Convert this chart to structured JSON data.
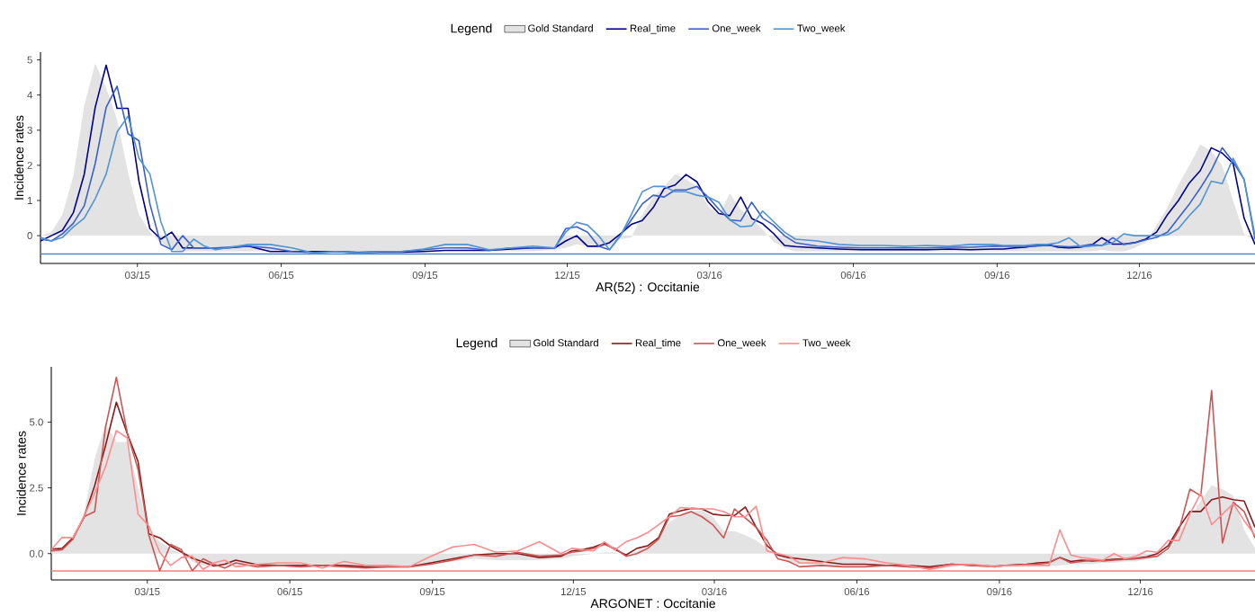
{
  "chart_data": [
    {
      "type": "line",
      "xlabel": "AR(52) : Occitanie",
      "ylabel": "Incidence rates",
      "legend_title": "Legend",
      "legend": "top",
      "x": [
        "2014-12-29",
        "2015-01-05",
        "2015-01-12",
        "2015-01-19",
        "2015-01-26",
        "2015-02-02",
        "2015-02-09",
        "2015-02-16",
        "2015-02-23",
        "2015-03-02",
        "2015-03-09",
        "2015-03-16",
        "2015-03-23",
        "2015-03-30",
        "2015-04-06",
        "2015-04-13",
        "2015-04-20",
        "2015-04-27",
        "2015-05-11",
        "2015-05-25",
        "2015-06-08",
        "2015-06-22",
        "2015-07-06",
        "2015-07-20",
        "2015-08-03",
        "2015-08-17",
        "2015-08-31",
        "2015-09-14",
        "2015-09-28",
        "2015-10-12",
        "2015-10-26",
        "2015-11-09",
        "2015-11-23",
        "2015-11-30",
        "2015-12-07",
        "2015-12-14",
        "2015-12-21",
        "2015-12-28",
        "2016-01-04",
        "2016-01-11",
        "2016-01-18",
        "2016-01-25",
        "2016-02-01",
        "2016-02-08",
        "2016-02-15",
        "2016-02-22",
        "2016-02-29",
        "2016-03-07",
        "2016-03-14",
        "2016-03-21",
        "2016-03-28",
        "2016-04-04",
        "2016-04-11",
        "2016-04-18",
        "2016-04-25",
        "2016-05-09",
        "2016-05-23",
        "2016-06-06",
        "2016-06-20",
        "2016-07-04",
        "2016-07-18",
        "2016-08-01",
        "2016-08-15",
        "2016-08-29",
        "2016-09-05",
        "2016-09-12",
        "2016-09-19",
        "2016-09-26",
        "2016-10-03",
        "2016-10-10",
        "2016-10-17",
        "2016-10-24",
        "2016-10-31",
        "2016-11-07",
        "2016-11-14",
        "2016-11-21",
        "2016-11-28",
        "2016-12-05",
        "2016-12-12",
        "2016-12-19",
        "2016-12-26",
        "2017-01-02",
        "2017-01-09",
        "2017-01-16",
        "2017-01-23",
        "2017-01-30",
        "2017-02-06",
        "2017-02-13"
      ],
      "series": [
        {
          "name": "Gold Standard",
          "type": "area",
          "color": "#e3e3e3",
          "values": [
            0.0,
            0.1,
            0.6,
            1.7,
            3.7,
            4.9,
            4.2,
            3.3,
            1.8,
            0.6,
            0.1,
            -0.2,
            -0.4,
            -0.45,
            -0.45,
            -0.45,
            -0.45,
            -0.45,
            -0.45,
            -0.45,
            -0.45,
            -0.45,
            -0.45,
            -0.45,
            -0.45,
            -0.45,
            -0.45,
            -0.35,
            -0.4,
            -0.45,
            -0.45,
            -0.45,
            -0.4,
            -0.35,
            -0.25,
            -0.3,
            -0.3,
            -0.3,
            -0.1,
            -0.05,
            0.6,
            1.1,
            1.4,
            1.75,
            1.6,
            1.4,
            0.85,
            0.6,
            1.2,
            0.75,
            0.5,
            0.17,
            -0.17,
            -0.35,
            -0.45,
            -0.45,
            -0.45,
            -0.45,
            -0.45,
            -0.45,
            -0.45,
            -0.45,
            -0.45,
            -0.45,
            -0.45,
            -0.45,
            -0.45,
            -0.45,
            -0.45,
            -0.45,
            -0.45,
            -0.45,
            -0.45,
            -0.4,
            -0.45,
            -0.45,
            -0.35,
            -0.2,
            0.3,
            0.8,
            1.45,
            2.0,
            2.6,
            2.4,
            2.0,
            1.0,
            0.05,
            -0.15
          ]
        },
        {
          "name": "Real_time",
          "color": "#00008b",
          "values": [
            -0.15,
            0.0,
            0.15,
            0.65,
            1.75,
            3.65,
            4.85,
            3.62,
            3.62,
            1.55,
            0.2,
            -0.1,
            0.1,
            -0.35,
            -0.35,
            -0.35,
            -0.35,
            -0.35,
            -0.3,
            -0.45,
            -0.45,
            -0.45,
            -0.45,
            -0.48,
            -0.47,
            -0.47,
            -0.45,
            -0.42,
            -0.42,
            -0.42,
            -0.38,
            -0.35,
            -0.35,
            -0.15,
            0.0,
            -0.3,
            -0.3,
            -0.2,
            0.05,
            0.32,
            0.43,
            0.8,
            1.34,
            1.44,
            1.74,
            1.53,
            0.97,
            0.63,
            0.57,
            1.1,
            0.49,
            0.34,
            0.06,
            -0.28,
            -0.31,
            -0.35,
            -0.38,
            -0.4,
            -0.4,
            -0.4,
            -0.4,
            -0.38,
            -0.4,
            -0.38,
            -0.38,
            -0.35,
            -0.33,
            -0.28,
            -0.25,
            -0.33,
            -0.35,
            -0.33,
            -0.28,
            -0.06,
            -0.24,
            -0.24,
            -0.2,
            -0.1,
            0.1,
            0.6,
            1.0,
            1.5,
            1.85,
            2.5,
            2.35,
            2.05,
            0.5,
            -0.25
          ]
        },
        {
          "name": "One_week",
          "color": "#3a5fcd",
          "values": [
            -0.1,
            -0.15,
            0.05,
            0.35,
            0.85,
            2.05,
            3.65,
            4.25,
            2.9,
            2.7,
            0.9,
            -0.25,
            -0.4,
            0.0,
            -0.35,
            -0.35,
            -0.35,
            -0.33,
            -0.3,
            -0.35,
            -0.45,
            -0.48,
            -0.45,
            -0.47,
            -0.45,
            -0.45,
            -0.4,
            -0.35,
            -0.35,
            -0.42,
            -0.35,
            -0.35,
            -0.35,
            0.2,
            0.25,
            0.1,
            -0.3,
            -0.4,
            0.0,
            0.45,
            0.9,
            1.15,
            1.1,
            1.3,
            1.3,
            1.4,
            1.1,
            0.75,
            0.45,
            0.42,
            0.95,
            0.5,
            0.3,
            0.0,
            -0.2,
            -0.3,
            -0.33,
            -0.35,
            -0.35,
            -0.35,
            -0.35,
            -0.33,
            -0.33,
            -0.3,
            -0.3,
            -0.3,
            -0.3,
            -0.3,
            -0.28,
            -0.3,
            -0.32,
            -0.3,
            -0.25,
            -0.28,
            -0.06,
            -0.25,
            -0.2,
            -0.12,
            -0.05,
            0.1,
            0.5,
            0.9,
            1.35,
            1.85,
            2.5,
            2.1,
            1.6,
            -0.1
          ]
        },
        {
          "name": "Two_week",
          "color": "#4f94d4",
          "values": [
            -0.05,
            -0.15,
            -0.05,
            0.25,
            0.5,
            1.05,
            1.75,
            2.95,
            3.4,
            2.2,
            1.75,
            0.4,
            -0.45,
            -0.45,
            -0.1,
            -0.3,
            -0.4,
            -0.35,
            -0.25,
            -0.25,
            -0.35,
            -0.5,
            -0.45,
            -0.5,
            -0.45,
            -0.45,
            -0.38,
            -0.25,
            -0.25,
            -0.4,
            -0.35,
            -0.3,
            -0.35,
            0.1,
            0.38,
            0.3,
            0.0,
            -0.4,
            0.0,
            0.6,
            1.25,
            1.4,
            1.4,
            1.25,
            1.25,
            1.15,
            1.1,
            0.95,
            0.45,
            0.25,
            0.28,
            0.7,
            0.4,
            0.1,
            -0.1,
            -0.15,
            -0.25,
            -0.28,
            -0.28,
            -0.3,
            -0.28,
            -0.3,
            -0.25,
            -0.25,
            -0.28,
            -0.28,
            -0.28,
            -0.25,
            -0.25,
            -0.2,
            -0.06,
            -0.3,
            -0.3,
            -0.28,
            -0.2,
            0.05,
            0.0,
            0.0,
            0.0,
            0.02,
            0.2,
            0.57,
            0.9,
            1.55,
            1.48,
            2.2,
            1.6,
            0.0
          ]
        }
      ],
      "xlim": [
        "2014-12-29",
        "2017-02-13"
      ],
      "ylim": [
        -0.79,
        5.22
      ],
      "xticks": [
        {
          "value": "2015-03-01",
          "label": "03/15"
        },
        {
          "value": "2015-06-01",
          "label": "06/15"
        },
        {
          "value": "2015-09-01",
          "label": "09/15"
        },
        {
          "value": "2015-12-01",
          "label": "12/15"
        },
        {
          "value": "2016-03-01",
          "label": "03/16"
        },
        {
          "value": "2016-06-01",
          "label": "06/16"
        },
        {
          "value": "2016-09-01",
          "label": "09/16"
        },
        {
          "value": "2016-12-01",
          "label": "12/16"
        }
      ],
      "yticks": [
        0,
        1,
        2,
        3,
        4,
        5
      ],
      "ref_lines": [
        {
          "axis": "y",
          "value": -0.52,
          "color": "#4a86c8"
        }
      ]
    },
    {
      "type": "line",
      "xlabel": "ARGONET : Occitanie",
      "ylabel": "Incidence rates",
      "legend_title": "Legend",
      "legend": "top",
      "x": [
        "2014-12-29",
        "2015-01-05",
        "2015-01-12",
        "2015-01-19",
        "2015-01-26",
        "2015-02-02",
        "2015-02-09",
        "2015-02-16",
        "2015-02-23",
        "2015-03-02",
        "2015-03-09",
        "2015-03-16",
        "2015-03-23",
        "2015-03-30",
        "2015-04-06",
        "2015-04-13",
        "2015-04-20",
        "2015-04-27",
        "2015-05-11",
        "2015-05-25",
        "2015-06-08",
        "2015-06-22",
        "2015-07-06",
        "2015-07-20",
        "2015-08-03",
        "2015-08-17",
        "2015-08-31",
        "2015-09-14",
        "2015-09-28",
        "2015-10-12",
        "2015-10-26",
        "2015-11-09",
        "2015-11-23",
        "2015-11-30",
        "2015-12-07",
        "2015-12-14",
        "2015-12-21",
        "2015-12-28",
        "2016-01-04",
        "2016-01-11",
        "2016-01-18",
        "2016-01-25",
        "2016-02-01",
        "2016-02-08",
        "2016-02-15",
        "2016-02-22",
        "2016-02-29",
        "2016-03-07",
        "2016-03-14",
        "2016-03-21",
        "2016-03-28",
        "2016-04-04",
        "2016-04-11",
        "2016-04-18",
        "2016-04-25",
        "2016-05-09",
        "2016-05-23",
        "2016-06-06",
        "2016-06-20",
        "2016-07-04",
        "2016-07-18",
        "2016-08-01",
        "2016-08-15",
        "2016-08-29",
        "2016-09-05",
        "2016-09-12",
        "2016-09-19",
        "2016-09-26",
        "2016-10-03",
        "2016-10-10",
        "2016-10-17",
        "2016-10-24",
        "2016-10-31",
        "2016-11-07",
        "2016-11-14",
        "2016-11-21",
        "2016-11-28",
        "2016-12-05",
        "2016-12-12",
        "2016-12-19",
        "2016-12-26",
        "2017-01-02",
        "2017-01-09",
        "2017-01-16",
        "2017-01-23",
        "2017-01-30",
        "2017-02-06",
        "2017-02-13"
      ],
      "series": [
        {
          "name": "Gold Standard",
          "type": "area",
          "color": "#e3e3e3",
          "values": [
            0.1,
            0.15,
            0.5,
            1.5,
            3.6,
            4.95,
            4.25,
            4.25,
            2.5,
            0.9,
            0.45,
            0.2,
            0.0,
            -0.3,
            -0.45,
            -0.45,
            -0.45,
            -0.45,
            -0.45,
            -0.45,
            -0.45,
            -0.45,
            -0.45,
            -0.45,
            -0.45,
            -0.45,
            -0.4,
            -0.3,
            -0.2,
            -0.25,
            -0.25,
            -0.25,
            -0.2,
            -0.1,
            -0.05,
            0.0,
            0.05,
            0.05,
            -0.1,
            0.1,
            0.3,
            0.65,
            1.2,
            1.45,
            1.6,
            1.65,
            1.4,
            0.85,
            0.85,
            0.7,
            0.5,
            0.2,
            -0.1,
            -0.3,
            -0.4,
            -0.45,
            -0.45,
            -0.45,
            -0.45,
            -0.45,
            -0.45,
            -0.45,
            -0.45,
            -0.45,
            -0.45,
            -0.45,
            -0.45,
            -0.45,
            -0.45,
            -0.45,
            -0.4,
            -0.4,
            -0.4,
            -0.35,
            -0.35,
            -0.3,
            -0.3,
            -0.2,
            -0.1,
            0.1,
            0.8,
            1.4,
            2.0,
            2.6,
            2.45,
            2.2,
            0.9,
            0.2
          ]
        },
        {
          "name": "Real_time",
          "color": "#8b1a1a",
          "values": [
            0.17,
            0.2,
            0.6,
            1.36,
            2.58,
            4.1,
            5.76,
            4.57,
            3.5,
            0.75,
            0.6,
            0.29,
            0.06,
            -0.17,
            -0.32,
            -0.47,
            -0.4,
            -0.25,
            -0.42,
            -0.45,
            -0.45,
            -0.45,
            -0.45,
            -0.5,
            -0.5,
            -0.5,
            -0.35,
            -0.2,
            -0.05,
            0.0,
            0.0,
            -0.15,
            -0.1,
            0.1,
            0.15,
            0.25,
            0.4,
            0.15,
            -0.05,
            0.2,
            0.3,
            0.6,
            1.5,
            1.62,
            1.72,
            1.7,
            1.5,
            1.45,
            1.45,
            1.77,
            1.0,
            0.3,
            -0.05,
            -0.15,
            -0.2,
            -0.3,
            -0.4,
            -0.4,
            -0.45,
            -0.45,
            -0.5,
            -0.4,
            -0.45,
            -0.48,
            -0.45,
            -0.42,
            -0.4,
            -0.35,
            -0.33,
            -0.15,
            -0.3,
            -0.25,
            -0.28,
            -0.25,
            -0.22,
            -0.2,
            -0.18,
            -0.12,
            0.0,
            0.3,
            1.0,
            1.6,
            1.6,
            2.05,
            2.15,
            2.05,
            2.0,
            1.0
          ]
        },
        {
          "name": "One_week",
          "color": "#cd5555",
          "values": [
            0.1,
            0.15,
            0.55,
            1.4,
            1.6,
            4.8,
            6.7,
            4.6,
            3.2,
            0.7,
            -0.65,
            0.35,
            0.15,
            -0.65,
            -0.2,
            -0.4,
            -0.55,
            -0.35,
            -0.5,
            -0.45,
            -0.5,
            -0.45,
            -0.5,
            -0.55,
            -0.5,
            -0.5,
            -0.4,
            -0.25,
            -0.05,
            -0.1,
            0.05,
            -0.1,
            -0.05,
            0.05,
            0.1,
            0.2,
            0.35,
            0.2,
            -0.1,
            0.0,
            0.2,
            0.55,
            1.4,
            1.45,
            1.6,
            1.4,
            1.1,
            0.6,
            1.7,
            1.35,
            1.0,
            0.5,
            -0.2,
            -0.3,
            -0.5,
            -0.45,
            -0.5,
            -0.5,
            -0.45,
            -0.5,
            -0.55,
            -0.4,
            -0.45,
            -0.5,
            -0.45,
            -0.45,
            -0.4,
            -0.4,
            -0.35,
            -0.15,
            -0.35,
            -0.3,
            -0.25,
            -0.28,
            -0.25,
            -0.22,
            -0.2,
            -0.15,
            -0.1,
            0.2,
            0.9,
            2.45,
            2.2,
            6.2,
            0.4,
            1.95,
            1.6,
            0.6
          ]
        },
        {
          "name": "Two_week",
          "color": "#ff8c8c",
          "values": [
            0.15,
            0.62,
            0.6,
            1.4,
            2.3,
            3.3,
            4.68,
            4.4,
            1.5,
            1.05,
            0.05,
            -0.45,
            -0.15,
            -0.1,
            -0.6,
            -0.35,
            -0.25,
            -0.5,
            -0.4,
            -0.35,
            -0.35,
            -0.55,
            -0.3,
            -0.45,
            -0.45,
            -0.5,
            -0.1,
            0.25,
            0.35,
            0.05,
            0.1,
            0.45,
            0.0,
            0.2,
            0.15,
            0.1,
            0.45,
            0.15,
            0.45,
            0.6,
            0.8,
            1.1,
            1.4,
            1.75,
            1.72,
            1.7,
            1.7,
            1.6,
            1.4,
            1.4,
            1.8,
            0.1,
            0.0,
            -0.1,
            -0.35,
            -0.35,
            -0.15,
            -0.2,
            -0.35,
            -0.45,
            -0.6,
            -0.45,
            -0.4,
            -0.5,
            -0.45,
            -0.45,
            -0.45,
            -0.45,
            -0.45,
            0.9,
            -0.05,
            -0.15,
            -0.2,
            -0.25,
            0.0,
            -0.2,
            -0.1,
            0.1,
            0.05,
            0.5,
            0.5,
            1.5,
            2.3,
            1.1,
            1.5,
            1.9,
            1.25,
            0.7
          ]
        }
      ],
      "xlim": [
        "2014-12-29",
        "2017-02-13"
      ],
      "ylim": [
        -1.0,
        7.1
      ],
      "xticks": [
        {
          "value": "2015-03-01",
          "label": "03/15"
        },
        {
          "value": "2015-06-01",
          "label": "06/15"
        },
        {
          "value": "2015-09-01",
          "label": "09/15"
        },
        {
          "value": "2015-12-01",
          "label": "12/15"
        },
        {
          "value": "2016-03-01",
          "label": "03/16"
        },
        {
          "value": "2016-06-01",
          "label": "06/16"
        },
        {
          "value": "2016-09-01",
          "label": "09/16"
        },
        {
          "value": "2016-12-01",
          "label": "12/16"
        }
      ],
      "yticks": [
        {
          "value": 0,
          "label": "0.0"
        },
        2.5,
        {
          "value": 5,
          "label": "5.0"
        }
      ],
      "ref_lines": [
        {
          "axis": "y",
          "value": -0.66,
          "color": "#f08080"
        }
      ]
    }
  ]
}
